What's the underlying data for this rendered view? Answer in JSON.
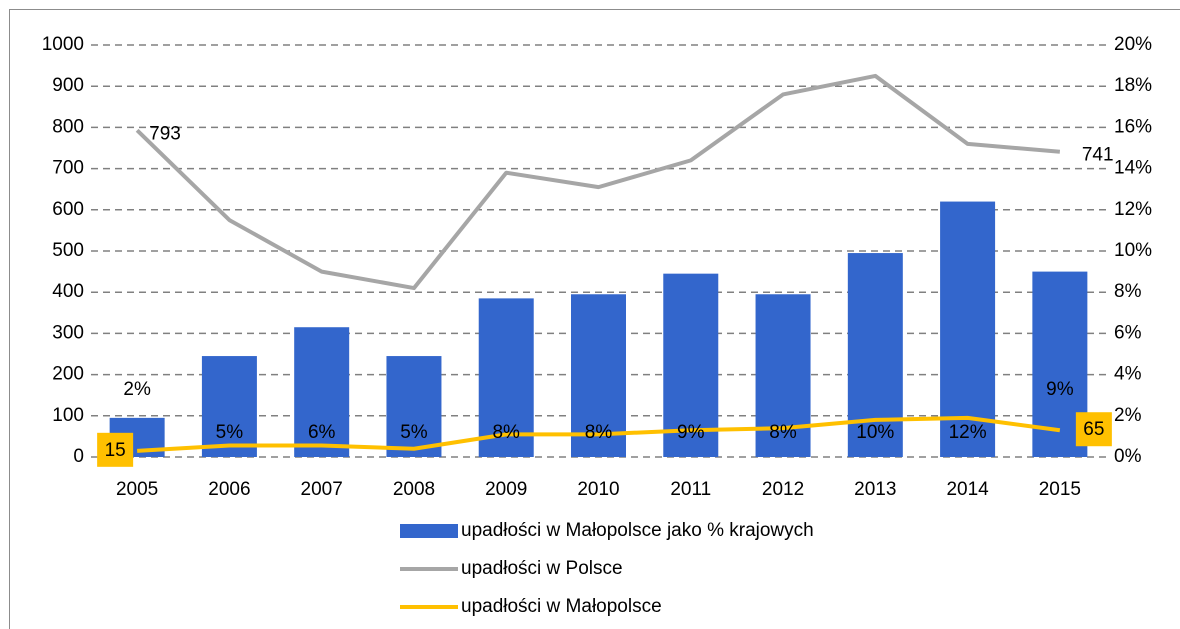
{
  "chart_data": {
    "type": "bar-line",
    "categories": [
      "2005",
      "2006",
      "2007",
      "2008",
      "2009",
      "2010",
      "2011",
      "2012",
      "2013",
      "2014",
      "2015"
    ],
    "series": [
      {
        "name": "upadłości w Małopolsce jako % krajowych",
        "type": "bar",
        "axis": "y2",
        "color": "#3366cc",
        "values": [
          1.9,
          4.9,
          6.3,
          4.9,
          7.7,
          7.9,
          8.9,
          7.9,
          9.9,
          12.4,
          9.0
        ],
        "value_labels": [
          "2%",
          "5%",
          "6%",
          "5%",
          "8%",
          "8%",
          "9%",
          "8%",
          "10%",
          "12%",
          "9%"
        ]
      },
      {
        "name": "upadłości w Polsce",
        "type": "line",
        "color": "#a6a6a6",
        "values": [
          793,
          575,
          450,
          410,
          690,
          655,
          720,
          880,
          925,
          760,
          741
        ],
        "value_labels": [
          "793",
          null,
          null,
          null,
          null,
          null,
          null,
          null,
          null,
          null,
          "741"
        ]
      },
      {
        "name": "upadłości w Małopolsce",
        "type": "line",
        "color": "#ffc000",
        "values": [
          15,
          28,
          28,
          20,
          55,
          55,
          65,
          70,
          90,
          95,
          65
        ],
        "value_labels": [
          "15",
          null,
          null,
          null,
          null,
          null,
          null,
          null,
          null,
          null,
          "65"
        ]
      }
    ],
    "ylim": [
      0,
      1000
    ],
    "yticks": [
      0,
      100,
      200,
      300,
      400,
      500,
      600,
      700,
      800,
      900,
      1000
    ],
    "y2lim": [
      0,
      20
    ],
    "y2ticks": [
      {
        "value": 0,
        "label": "0%"
      },
      {
        "value": 2,
        "label": "2%"
      },
      {
        "value": 4,
        "label": "4%"
      },
      {
        "value": 6,
        "label": "6%"
      },
      {
        "value": 8,
        "label": "8%"
      },
      {
        "value": 10,
        "label": "10%"
      },
      {
        "value": 12,
        "label": "12%"
      },
      {
        "value": 14,
        "label": "14%"
      },
      {
        "value": 16,
        "label": "16%"
      },
      {
        "value": 18,
        "label": "18%"
      },
      {
        "value": 20,
        "label": "20%"
      }
    ],
    "grid": true,
    "legend": "bottom"
  }
}
